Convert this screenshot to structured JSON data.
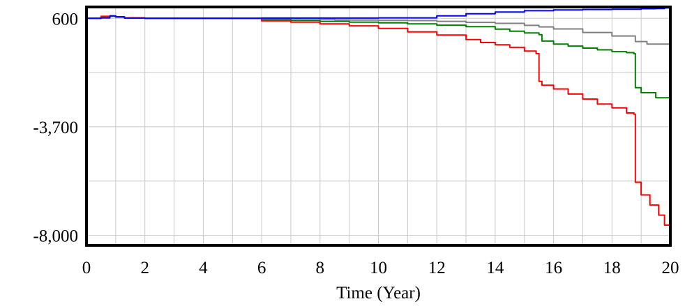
{
  "chart_data": {
    "type": "line",
    "title": "",
    "xlabel": "Time (Year)",
    "ylabel": "",
    "xlim": [
      0,
      20
    ],
    "ylim": [
      -8400,
      1050
    ],
    "x_ticks": [
      0,
      2,
      4,
      6,
      8,
      10,
      12,
      14,
      16,
      18,
      20
    ],
    "x_tick_labels": [
      "0",
      "2",
      "4",
      "6",
      "8",
      "10",
      "12",
      "14",
      "16",
      "18",
      "20"
    ],
    "y_ticks": [
      600,
      -3700,
      -8000
    ],
    "y_tick_labels": [
      "600",
      "-3,700",
      "-8,000"
    ],
    "y_gridlines": [
      600,
      -1550,
      -3700,
      -5850,
      -8000
    ],
    "x_gridlines": [
      1,
      2,
      3,
      4,
      5,
      6,
      7,
      8,
      9,
      10,
      11,
      12,
      13,
      14,
      15,
      16,
      17,
      18,
      19
    ],
    "grid": true,
    "legend": "none",
    "series": [
      {
        "color": "#808080",
        "x": [
          0,
          0.5,
          0.8,
          1.0,
          1.3,
          2,
          4,
          6,
          7,
          8,
          8.5,
          9,
          10,
          11,
          12,
          13,
          14,
          15,
          15.5,
          16,
          17,
          18,
          18.8,
          19.2,
          20
        ],
        "y": [
          600,
          620,
          680,
          650,
          610,
          600,
          600,
          600,
          590,
          560,
          540,
          530,
          520,
          510,
          480,
          440,
          400,
          320,
          260,
          180,
          40,
          -100,
          -320,
          -420,
          -480
        ]
      },
      {
        "color": "#008000",
        "x": [
          0,
          0.5,
          0.8,
          1.0,
          1.3,
          2,
          4,
          6,
          7,
          8,
          9,
          10,
          11,
          12,
          13,
          14,
          14.5,
          15,
          15.5,
          15.6,
          16,
          16.5,
          17,
          17.5,
          18,
          18.5,
          18.75,
          18.8,
          19,
          19.5,
          20
        ],
        "y": [
          600,
          620,
          680,
          650,
          610,
          600,
          600,
          560,
          520,
          480,
          450,
          420,
          380,
          330,
          270,
          170,
          90,
          20,
          -50,
          -300,
          -420,
          -500,
          -580,
          -650,
          -720,
          -760,
          -800,
          -2150,
          -2350,
          -2550,
          -2900
        ]
      },
      {
        "color": "#ff0000",
        "x": [
          0,
          0.5,
          0.8,
          1.0,
          1.3,
          2,
          4,
          6,
          7,
          8,
          9,
          10,
          11,
          12,
          13,
          13.5,
          14,
          14.5,
          15,
          15.4,
          15.5,
          15.6,
          16,
          16.5,
          17,
          17.5,
          18,
          18.5,
          18.75,
          18.8,
          19,
          19.3,
          19.6,
          19.8,
          20
        ],
        "y": [
          600,
          680,
          700,
          660,
          620,
          600,
          600,
          500,
          450,
          380,
          300,
          200,
          60,
          -60,
          -240,
          -360,
          -450,
          -550,
          -700,
          -800,
          -1900,
          -2050,
          -2200,
          -2400,
          -2600,
          -2800,
          -2950,
          -3150,
          -3200,
          -5900,
          -6400,
          -6800,
          -7200,
          -7600,
          -8300
        ]
      },
      {
        "color": "#0000ff",
        "x": [
          0,
          0.5,
          0.8,
          1.0,
          1.3,
          2,
          4,
          6,
          8,
          10,
          12,
          13,
          14,
          15,
          16,
          17,
          18,
          19,
          19.5,
          19.8,
          20
        ],
        "y": [
          600,
          620,
          700,
          660,
          610,
          600,
          600,
          610,
          610,
          620,
          700,
          780,
          850,
          900,
          930,
          950,
          960,
          980,
          990,
          1010,
          1040
        ]
      }
    ]
  }
}
